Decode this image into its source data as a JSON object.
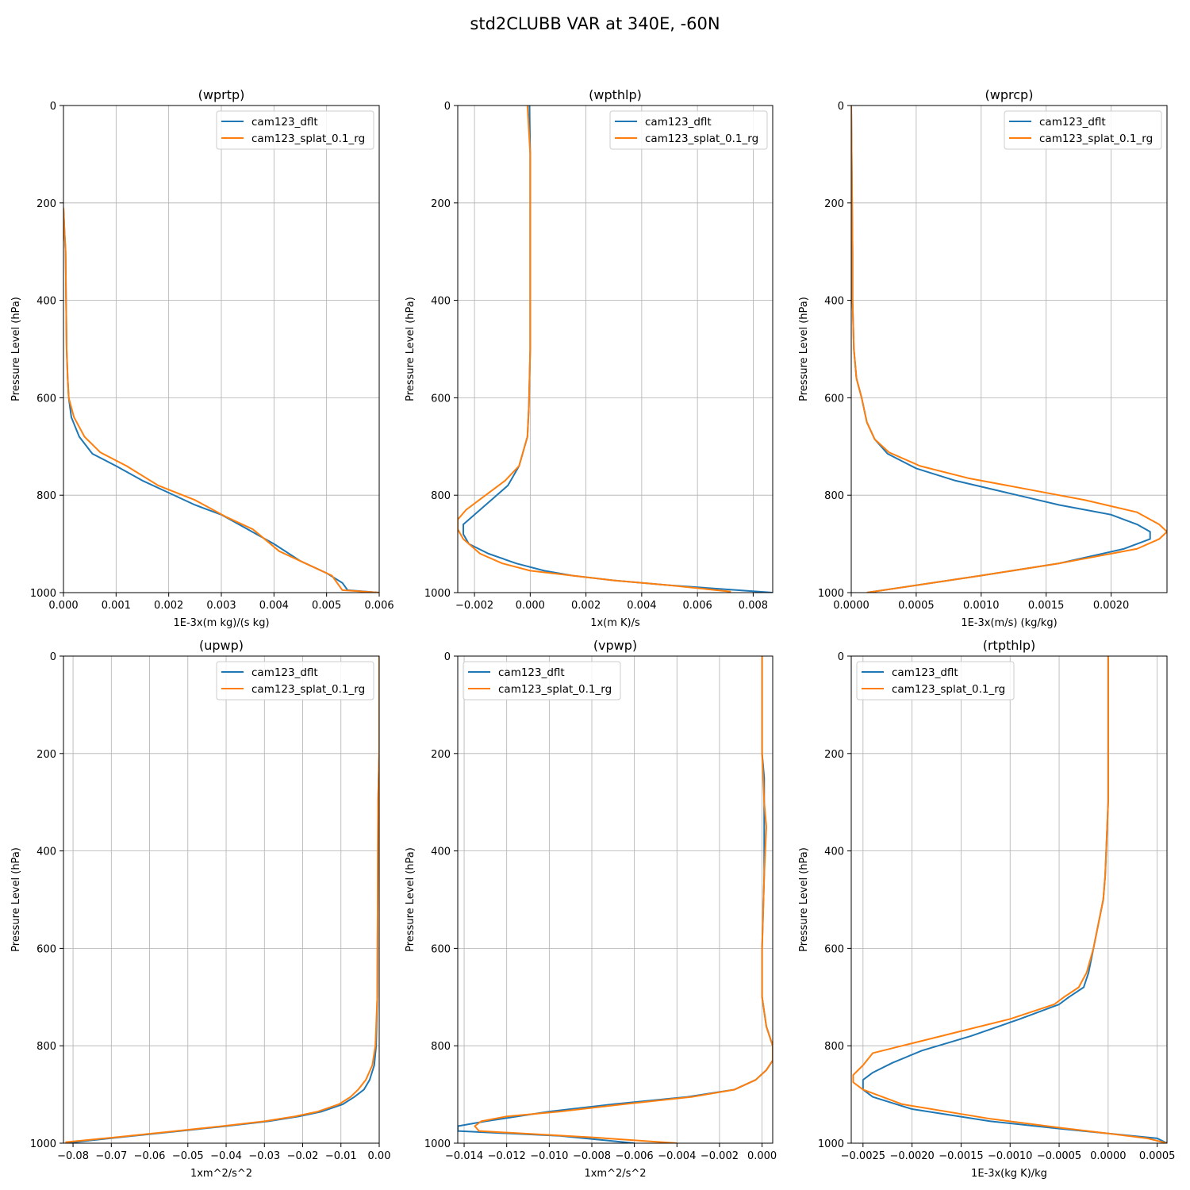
{
  "suptitle": "std2CLUBB VAR at 340E, -60N",
  "chart_data": [
    {
      "type": "line",
      "title": "(wprtp)",
      "xlabel": "1E-3x(m kg)/(s kg)",
      "ylabel": "Pressure Level (hPa)",
      "xlim": [
        0,
        0.006
      ],
      "ylim": [
        1000,
        0
      ],
      "xticks": [
        0,
        0.001,
        0.002,
        0.003,
        0.004,
        0.005,
        0.006
      ],
      "xtick_labels": [
        "0.000",
        "0.001",
        "0.002",
        "0.003",
        "0.004",
        "0.005",
        "0.006"
      ],
      "yticks": [
        0,
        200,
        400,
        600,
        800,
        1000
      ],
      "ytick_labels": [
        "0",
        "200",
        "400",
        "600",
        "800",
        "1000"
      ],
      "legend_position": "top-right",
      "series": [
        {
          "name": "cam123_dflt",
          "color": "#1f77b4",
          "x": [
            0,
            2e-05,
            4e-05,
            5e-05,
            6e-05,
            8e-05,
            0.0001,
            0.00015,
            0.0003,
            0.00055,
            0.001,
            0.0015,
            0.002,
            0.0025,
            0.003,
            0.0035,
            0.004,
            0.0045,
            0.005,
            0.0053,
            0.0054,
            0.006
          ],
          "y": [
            210,
            260,
            300,
            400,
            500,
            560,
            600,
            640,
            680,
            715,
            740,
            770,
            795,
            820,
            840,
            870,
            900,
            935,
            960,
            980,
            995,
            1000
          ]
        },
        {
          "name": "cam123_splat_0.1_rg",
          "color": "#ff7f0e",
          "x": [
            0,
            2e-05,
            4e-05,
            5e-05,
            6e-05,
            8e-05,
            0.0001,
            0.0002,
            0.0004,
            0.0007,
            0.0012,
            0.0018,
            0.0025,
            0.0031,
            0.0036,
            0.0041,
            0.0046,
            0.0051,
            0.0053,
            0.006
          ],
          "y": [
            210,
            260,
            300,
            400,
            500,
            560,
            600,
            640,
            680,
            712,
            740,
            780,
            810,
            845,
            870,
            915,
            940,
            965,
            995,
            1000
          ]
        }
      ]
    },
    {
      "type": "line",
      "title": "(wpthlp)",
      "xlabel": "1x(m K)/s",
      "ylabel": "Pressure Level (hPa)",
      "xlim": [
        -0.0026,
        0.0087
      ],
      "ylim": [
        1000,
        0
      ],
      "xticks": [
        -0.002,
        0,
        0.002,
        0.004,
        0.006,
        0.008
      ],
      "xtick_labels": [
        "−0.002",
        "0.000",
        "0.002",
        "0.004",
        "0.006",
        "0.008"
      ],
      "yticks": [
        0,
        200,
        400,
        600,
        800,
        1000
      ],
      "ytick_labels": [
        "0",
        "200",
        "400",
        "600",
        "800",
        "1000"
      ],
      "legend_position": "top-right",
      "series": [
        {
          "name": "cam123_dflt",
          "color": "#1f77b4",
          "x": [
            -3e-05,
            0,
            0,
            0,
            -5e-05,
            -0.0001,
            -0.0004,
            -0.0008,
            -0.0014,
            -0.002,
            -0.0024,
            -0.0024,
            -0.0022,
            -0.0015,
            -0.0005,
            0.0005,
            0.0015,
            0.003,
            0.005,
            0.0087
          ],
          "y": [
            0,
            100,
            300,
            500,
            620,
            680,
            740,
            780,
            810,
            840,
            860,
            880,
            900,
            920,
            940,
            955,
            965,
            975,
            985,
            1000
          ]
        },
        {
          "name": "cam123_splat_0.1_rg",
          "color": "#ff7f0e",
          "x": [
            -0.0001,
            0,
            0,
            0,
            -5e-05,
            -0.0001,
            -0.0004,
            -0.0009,
            -0.0016,
            -0.0023,
            -0.0026,
            -0.0026,
            -0.0024,
            -0.0018,
            -0.001,
            0,
            0.0015,
            0.003,
            0.005,
            0.0072
          ],
          "y": [
            0,
            100,
            300,
            500,
            620,
            680,
            740,
            770,
            800,
            830,
            850,
            870,
            890,
            920,
            940,
            955,
            965,
            975,
            985,
            998
          ]
        }
      ]
    },
    {
      "type": "line",
      "title": "(wprcp)",
      "xlabel": "1E-3x(m/s) (kg/kg)",
      "ylabel": "Pressure Level (hPa)",
      "xlim": [
        0,
        0.00243
      ],
      "ylim": [
        1000,
        0
      ],
      "xticks": [
        0,
        0.0005,
        0.001,
        0.0015,
        0.002
      ],
      "xtick_labels": [
        "0.0000",
        "0.0005",
        "0.0010",
        "0.0015",
        "0.0020"
      ],
      "yticks": [
        0,
        200,
        400,
        600,
        800,
        1000
      ],
      "ytick_labels": [
        "0",
        "200",
        "400",
        "600",
        "800",
        "1000"
      ],
      "legend_position": "top-right",
      "series": [
        {
          "name": "cam123_dflt",
          "color": "#1f77b4",
          "x": [
            0,
            1e-05,
            1e-05,
            2e-05,
            4e-05,
            8e-05,
            0.00012,
            0.00018,
            0.00028,
            0.0005,
            0.0008,
            0.0012,
            0.0016,
            0.002,
            0.0022,
            0.0023,
            0.0023,
            0.0021,
            0.0016,
            0.001,
            0.0005,
            0.00012
          ],
          "y": [
            0,
            300,
            400,
            500,
            560,
            600,
            650,
            685,
            715,
            745,
            770,
            795,
            820,
            840,
            860,
            875,
            890,
            910,
            940,
            965,
            985,
            1000
          ]
        },
        {
          "name": "cam123_splat_0.1_rg",
          "color": "#ff7f0e",
          "x": [
            0,
            1e-05,
            1e-05,
            2e-05,
            4e-05,
            8e-05,
            0.00012,
            0.00018,
            0.00029,
            0.00053,
            0.0009,
            0.0014,
            0.0018,
            0.0022,
            0.00237,
            0.00243,
            0.00237,
            0.0022,
            0.0016,
            0.001,
            0.0005,
            0.00012
          ],
          "y": [
            0,
            300,
            400,
            500,
            560,
            600,
            650,
            685,
            712,
            740,
            765,
            790,
            810,
            835,
            860,
            875,
            890,
            910,
            940,
            965,
            985,
            1000
          ]
        }
      ]
    },
    {
      "type": "line",
      "title": "(upwp)",
      "xlabel": "1xm^2/s^2",
      "ylabel": "Pressure Level (hPa)",
      "xlim": [
        -0.0825,
        0
      ],
      "ylim": [
        1000,
        0
      ],
      "xticks": [
        -0.08,
        -0.07,
        -0.06,
        -0.05,
        -0.04,
        -0.03,
        -0.02,
        -0.01,
        0
      ],
      "xtick_labels": [
        "−0.08",
        "−0.07",
        "−0.06",
        "−0.05",
        "−0.04",
        "−0.03",
        "−0.02",
        "−0.01",
        "0.00"
      ],
      "yticks": [
        0,
        200,
        400,
        600,
        800,
        1000
      ],
      "ytick_labels": [
        "0",
        "200",
        "400",
        "600",
        "800",
        "1000"
      ],
      "legend_position": "top-right",
      "series": [
        {
          "name": "cam123_dflt",
          "color": "#1f77b4",
          "x": [
            0,
            0,
            -0.0003,
            -0.0004,
            -0.0005,
            -0.0008,
            -0.0013,
            -0.0025,
            -0.004,
            -0.0065,
            -0.0095,
            -0.015,
            -0.021,
            -0.029,
            -0.04,
            -0.052,
            -0.068,
            -0.082
          ],
          "y": [
            0,
            200,
            300,
            500,
            700,
            800,
            840,
            870,
            890,
            905,
            920,
            935,
            945,
            955,
            965,
            975,
            988,
            1000
          ]
        },
        {
          "name": "cam123_splat_0.1_rg",
          "color": "#ff7f0e",
          "x": [
            0,
            0,
            -0.0003,
            -0.0004,
            -0.0005,
            -0.001,
            -0.0018,
            -0.0035,
            -0.0055,
            -0.0075,
            -0.0105,
            -0.016,
            -0.022,
            -0.03,
            -0.041,
            -0.053,
            -0.069,
            -0.082
          ],
          "y": [
            0,
            200,
            300,
            500,
            700,
            800,
            840,
            870,
            890,
            905,
            920,
            935,
            945,
            955,
            965,
            975,
            988,
            998
          ]
        }
      ]
    },
    {
      "type": "line",
      "title": "(vpwp)",
      "xlabel": "1xm^2/s^2",
      "ylabel": "Pressure Level (hPa)",
      "xlim": [
        -0.0143,
        0.0005
      ],
      "ylim": [
        1000,
        0
      ],
      "xticks": [
        -0.014,
        -0.012,
        -0.01,
        -0.008,
        -0.006,
        -0.004,
        -0.002,
        0
      ],
      "xtick_labels": [
        "−0.014",
        "−0.012",
        "−0.010",
        "−0.008",
        "−0.006",
        "−0.004",
        "−0.002",
        "0.000"
      ],
      "yticks": [
        0,
        200,
        400,
        600,
        800,
        1000
      ],
      "ytick_labels": [
        "0",
        "200",
        "400",
        "600",
        "800",
        "1000"
      ],
      "legend_position": "top-left",
      "series": [
        {
          "name": "cam123_dflt",
          "color": "#1f77b4",
          "x": [
            0,
            0,
            0.0001,
            0.0001,
            0.0001,
            0,
            0,
            0.0002,
            0.0005,
            0.0005,
            0.0002,
            -0.0003,
            -0.0013,
            -0.0035,
            -0.007,
            -0.01,
            -0.013,
            -0.0143,
            -0.0143,
            -0.0095,
            -0.006
          ],
          "y": [
            0,
            200,
            250,
            350,
            450,
            600,
            700,
            760,
            800,
            830,
            850,
            870,
            890,
            905,
            920,
            935,
            955,
            965,
            975,
            985,
            1000
          ]
        },
        {
          "name": "cam123_splat_0.1_rg",
          "color": "#ff7f0e",
          "x": [
            0,
            0,
            0.0001,
            0.0002,
            0.0001,
            0,
            0,
            0.0002,
            0.0005,
            0.0005,
            0.0002,
            -0.0003,
            -0.0013,
            -0.0033,
            -0.0065,
            -0.0095,
            -0.012,
            -0.0132,
            -0.0135,
            -0.0133,
            -0.008,
            -0.004
          ],
          "y": [
            0,
            200,
            300,
            350,
            450,
            600,
            700,
            760,
            800,
            830,
            850,
            870,
            890,
            905,
            920,
            935,
            945,
            955,
            965,
            975,
            988,
            1000
          ]
        }
      ]
    },
    {
      "type": "line",
      "title": "(rtpthlp)",
      "xlabel": "1E-3x(kg K)/kg",
      "ylabel": "Pressure Level (hPa)",
      "xlim": [
        -0.00262,
        0.0006
      ],
      "ylim": [
        1000,
        0
      ],
      "xticks": [
        -0.0025,
        -0.002,
        -0.0015,
        -0.001,
        -0.0005,
        0,
        0.0005
      ],
      "xtick_labels": [
        "−0.0025",
        "−0.0020",
        "−0.0015",
        "−0.0010",
        "−0.0005",
        "0.0000",
        "0.0005"
      ],
      "yticks": [
        0,
        200,
        400,
        600,
        800,
        1000
      ],
      "ytick_labels": [
        "0",
        "200",
        "400",
        "600",
        "800",
        "1000"
      ],
      "legend_position": "top-left",
      "series": [
        {
          "name": "cam123_dflt",
          "color": "#1f77b4",
          "x": [
            0,
            0,
            -3e-05,
            -5e-05,
            -0.0001,
            -0.00015,
            -0.0002,
            -0.00025,
            -0.0004,
            -0.0005,
            -0.0009,
            -0.0014,
            -0.0019,
            -0.0022,
            -0.0024,
            -0.0025,
            -0.0025,
            -0.0024,
            -0.002,
            -0.0012,
            -0.0005,
            0,
            0.0005,
            0.0006
          ],
          "y": [
            0,
            300,
            450,
            500,
            550,
            600,
            650,
            680,
            700,
            715,
            745,
            780,
            810,
            835,
            855,
            870,
            890,
            905,
            930,
            955,
            970,
            980,
            990,
            1000
          ]
        },
        {
          "name": "cam123_splat_0.1_rg",
          "color": "#ff7f0e",
          "x": [
            0,
            0,
            -3e-05,
            -5e-05,
            -0.0001,
            -0.00015,
            -0.00022,
            -0.0003,
            -0.00045,
            -0.00055,
            -0.001,
            -0.0015,
            -0.002,
            -0.0024,
            -0.0025,
            -0.0026,
            -0.0026,
            -0.0025,
            -0.0021,
            -0.0012,
            -0.0005,
            0,
            0.0004,
            0.0006
          ],
          "y": [
            0,
            300,
            450,
            500,
            550,
            600,
            650,
            680,
            700,
            715,
            745,
            770,
            795,
            815,
            840,
            860,
            875,
            890,
            920,
            950,
            968,
            980,
            990,
            1000
          ]
        }
      ]
    }
  ]
}
